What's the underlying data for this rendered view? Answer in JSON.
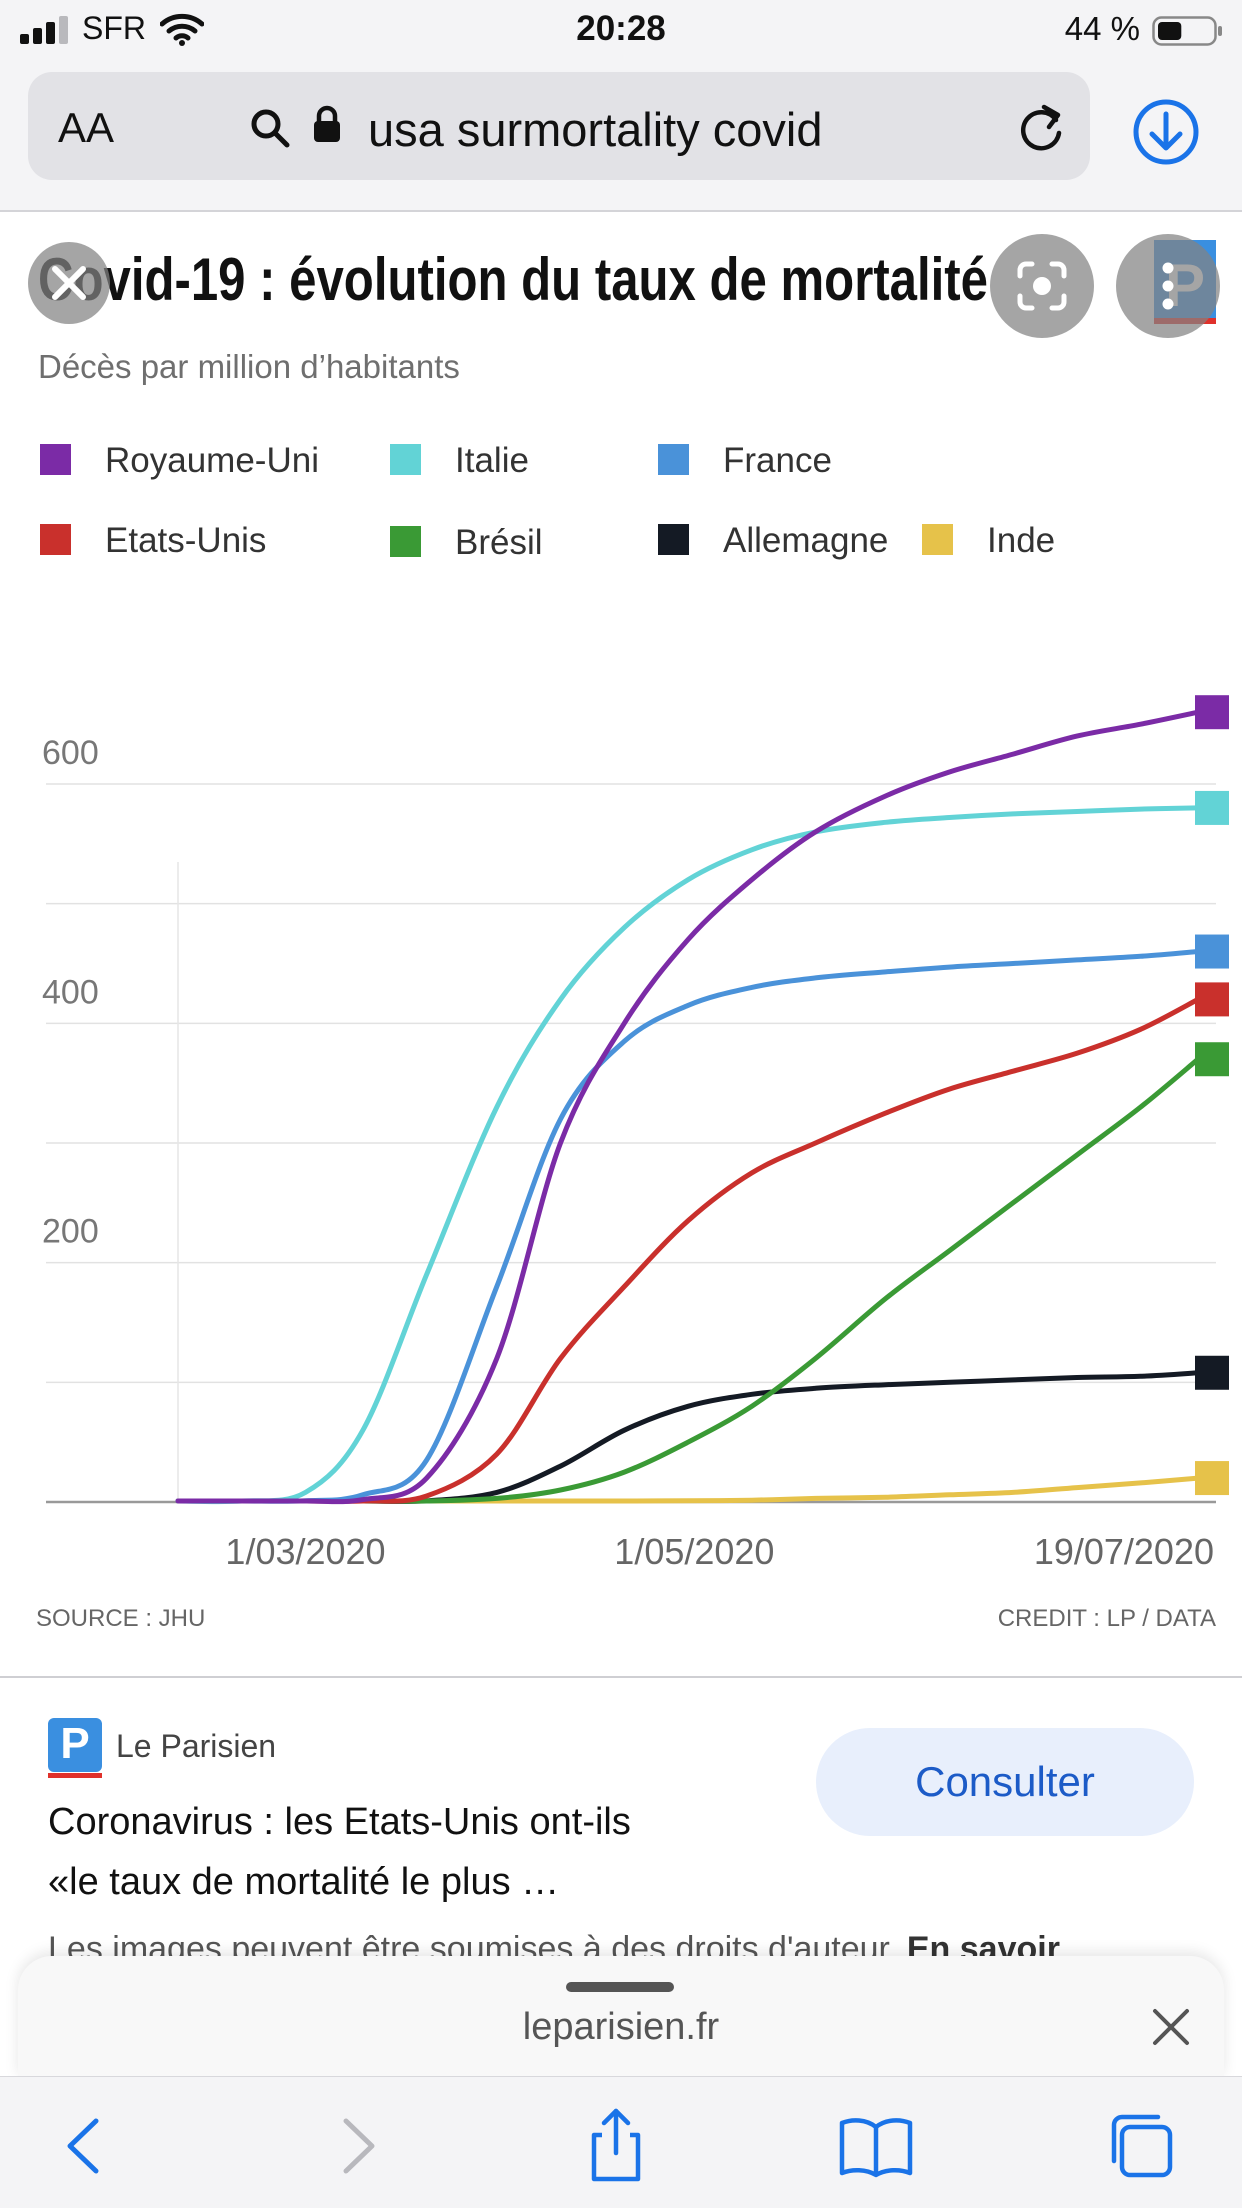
{
  "status_bar": {
    "carrier": "SFR",
    "time": "20:28",
    "battery_percent": "44 %",
    "battery_level": 0.44,
    "signal_bars": 3
  },
  "browser": {
    "text_size_label": "AA",
    "url_text": "usa surmortality covid",
    "accent_color": "#1a73e8"
  },
  "chart_card": {
    "chart_data": {
      "type": "line",
      "title": "Covid-19 : évolution du taux de mortalité",
      "subtitle": "Décès par million d’habitants",
      "xlabel": "",
      "ylabel": "",
      "x_ticks": [
        "1/03/2020",
        "1/05/2020",
        "19/07/2020"
      ],
      "y_ticks": [
        200,
        400,
        600
      ],
      "ylim": [
        0,
        670
      ],
      "xlim": [
        "2020-02-10",
        "2020-07-19"
      ],
      "grid": true,
      "legend_placement": "top",
      "source": "SOURCE : JHU",
      "credit": "CREDIT : LP / DATA",
      "x": [
        "2020-02-10",
        "2020-02-20",
        "2020-03-01",
        "2020-03-10",
        "2020-03-20",
        "2020-03-31",
        "2020-04-10",
        "2020-04-20",
        "2020-04-30",
        "2020-05-10",
        "2020-05-20",
        "2020-05-31",
        "2020-06-10",
        "2020-06-20",
        "2020-06-30",
        "2020-07-10",
        "2020-07-19"
      ],
      "series": [
        {
          "name": "Royaume-Uni",
          "color": "#7b2ba6",
          "values": [
            0,
            0,
            0,
            2,
            20,
            120,
            300,
            400,
            470,
            520,
            560,
            590,
            610,
            625,
            640,
            650,
            660
          ]
        },
        {
          "name": "Italie",
          "color": "#62d3d6",
          "values": [
            0,
            0,
            8,
            60,
            190,
            330,
            420,
            480,
            520,
            545,
            560,
            568,
            572,
            575,
            577,
            579,
            580
          ]
        },
        {
          "name": "France",
          "color": "#4a92d9",
          "values": [
            0,
            0,
            1,
            6,
            35,
            180,
            320,
            385,
            415,
            430,
            438,
            443,
            447,
            450,
            453,
            456,
            460
          ]
        },
        {
          "name": "Etats-Unis",
          "color": "#c9302c",
          "values": [
            0,
            0,
            0,
            0,
            5,
            40,
            120,
            180,
            235,
            275,
            300,
            325,
            345,
            360,
            375,
            395,
            420
          ]
        },
        {
          "name": "Brésil",
          "color": "#3a9a35",
          "values": [
            0,
            0,
            0,
            0,
            0,
            3,
            10,
            25,
            50,
            80,
            120,
            170,
            210,
            250,
            290,
            330,
            370
          ]
        },
        {
          "name": "Allemagne",
          "color": "#141a24",
          "values": [
            0,
            0,
            0,
            0,
            1,
            8,
            30,
            60,
            80,
            90,
            95,
            98,
            100,
            102,
            104,
            105,
            108
          ]
        },
        {
          "name": "Inde",
          "color": "#e6c24a",
          "values": [
            0,
            0,
            0,
            0,
            0,
            0,
            0,
            0.5,
            1,
            1.5,
            3,
            4,
            6,
            8,
            12,
            16,
            20
          ]
        }
      ]
    }
  },
  "result": {
    "source_name": "Le Parisien",
    "source_logo_letter": "P",
    "title_line1": "Coronavirus : les Etats-Unis ont-ils",
    "title_line2": "«le taux de mortalité le plus …",
    "consult_label": "Consulter",
    "copyright_text": "Les images peuvent être soumises à des droits d'auteur.",
    "learn_more": "En savoir"
  },
  "bottom_sheet": {
    "domain": "leparisien.fr"
  },
  "toolbar": {
    "items": [
      "back-icon",
      "forward-icon",
      "share-icon",
      "bookmarks-icon",
      "tabs-icon"
    ]
  }
}
